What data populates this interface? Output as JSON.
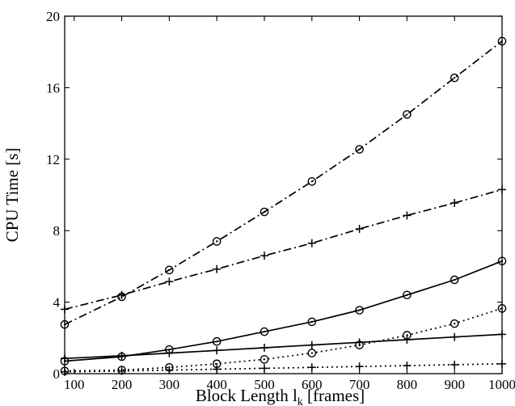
{
  "chart_data": {
    "type": "line",
    "title": "",
    "xlabel": "Block Length l",
    "xlabel_subscript": "k",
    "xlabel_suffix": " [frames]",
    "ylabel": "CPU Time [s]",
    "xlim": [
      80,
      1000
    ],
    "ylim": [
      0,
      20
    ],
    "grid": false,
    "x_ticks": [
      100,
      200,
      300,
      400,
      500,
      600,
      700,
      800,
      900,
      1000
    ],
    "y_ticks": [
      0,
      4,
      8,
      12,
      16,
      20
    ],
    "x": [
      80,
      200,
      300,
      400,
      500,
      600,
      700,
      800,
      900,
      1000
    ],
    "series": [
      {
        "style": "dashdot",
        "marker": "circle",
        "values": [
          2.75,
          4.3,
          5.8,
          7.4,
          9.05,
          10.75,
          12.55,
          14.5,
          16.55,
          18.6
        ]
      },
      {
        "style": "dashdot",
        "marker": "plus",
        "values": [
          3.6,
          4.4,
          5.15,
          5.85,
          6.6,
          7.3,
          8.1,
          8.85,
          9.55,
          10.3
        ]
      },
      {
        "style": "solid",
        "marker": "circle",
        "values": [
          0.7,
          0.95,
          1.35,
          1.8,
          2.35,
          2.9,
          3.55,
          4.4,
          5.25,
          6.3
        ]
      },
      {
        "style": "solid",
        "marker": "plus",
        "values": [
          0.85,
          1.0,
          1.15,
          1.3,
          1.45,
          1.6,
          1.75,
          1.9,
          2.05,
          2.2
        ]
      },
      {
        "style": "dotted",
        "marker": "circle",
        "values": [
          0.15,
          0.2,
          0.35,
          0.55,
          0.8,
          1.15,
          1.6,
          2.15,
          2.8,
          3.65
        ]
      },
      {
        "style": "dotted",
        "marker": "plus",
        "values": [
          0.1,
          0.15,
          0.2,
          0.25,
          0.3,
          0.35,
          0.4,
          0.45,
          0.5,
          0.55
        ]
      }
    ]
  }
}
